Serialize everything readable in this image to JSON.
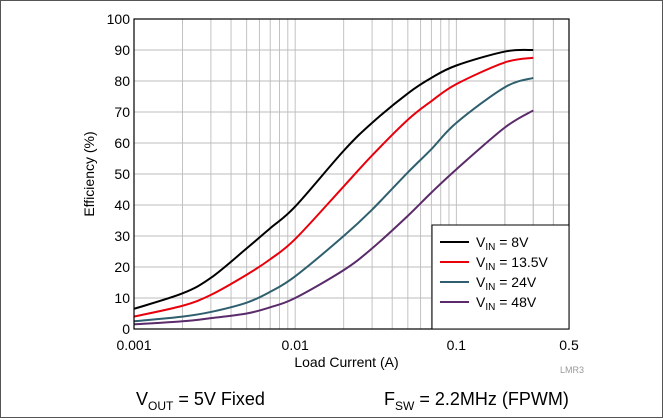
{
  "chart_data": {
    "type": "line",
    "xlabel": "Load Current (A)",
    "ylabel": "Efficiency (%)",
    "xscale": "log",
    "xlim": [
      0.001,
      0.5
    ],
    "ylim": [
      0,
      100
    ],
    "grid": true,
    "legend_position": "bottom-right",
    "x_ticks": [
      {
        "value": 0.001,
        "label": "0.001"
      },
      {
        "value": 0.01,
        "label": "0.01"
      },
      {
        "value": 0.1,
        "label": "0.1"
      },
      {
        "value": 0.5,
        "label": "0.5"
      }
    ],
    "y_ticks": [
      0,
      10,
      20,
      30,
      40,
      50,
      60,
      70,
      80,
      90,
      100
    ],
    "series": [
      {
        "name": "V_IN = 8V",
        "name_main": "V",
        "name_sub": "IN",
        "name_rest": " = 8V",
        "color": "#000000",
        "x": [
          0.001,
          0.002,
          0.003,
          0.005,
          0.007,
          0.01,
          0.02,
          0.03,
          0.05,
          0.07,
          0.1,
          0.2,
          0.3
        ],
        "y": [
          6.5,
          11.5,
          16.5,
          26.0,
          32.5,
          39.5,
          57.5,
          66.5,
          76.0,
          81.0,
          85.0,
          89.5,
          90.0
        ]
      },
      {
        "name": "V_IN = 13.5V",
        "name_main": "V",
        "name_sub": "IN",
        "name_rest": " = 13.5V",
        "color": "#e8000b",
        "x": [
          0.001,
          0.002,
          0.003,
          0.005,
          0.007,
          0.01,
          0.02,
          0.03,
          0.05,
          0.07,
          0.1,
          0.2,
          0.3
        ],
        "y": [
          4.0,
          7.5,
          11.0,
          17.5,
          22.5,
          29.0,
          46.0,
          56.0,
          67.5,
          73.5,
          79.0,
          86.0,
          87.5
        ]
      },
      {
        "name": "V_IN = 24V",
        "name_main": "V",
        "name_sub": "IN",
        "name_rest": " = 24V",
        "color": "#2f5f6e",
        "x": [
          0.001,
          0.002,
          0.003,
          0.005,
          0.007,
          0.01,
          0.02,
          0.03,
          0.05,
          0.07,
          0.1,
          0.2,
          0.3
        ],
        "y": [
          2.5,
          4.0,
          5.5,
          8.5,
          12.0,
          17.0,
          30.0,
          38.5,
          50.5,
          58.0,
          66.5,
          78.0,
          81.0
        ]
      },
      {
        "name": "V_IN = 48V",
        "name_main": "V",
        "name_sub": "IN",
        "name_rest": " = 48V",
        "color": "#5a2a6a",
        "x": [
          0.001,
          0.002,
          0.003,
          0.005,
          0.007,
          0.01,
          0.02,
          0.03,
          0.05,
          0.07,
          0.1,
          0.2,
          0.3
        ],
        "y": [
          1.5,
          2.5,
          3.5,
          5.0,
          7.0,
          10.0,
          19.0,
          26.0,
          36.5,
          44.0,
          51.5,
          65.0,
          70.5
        ]
      }
    ]
  },
  "annotations": {
    "vout_main": "V",
    "vout_sub": "OUT",
    "vout_rest": " = 5V Fixed",
    "fsw_main": "F",
    "fsw_sub": "SW",
    "fsw_rest": " = 2.2MHz (FPWM)",
    "code": "LMR3"
  }
}
